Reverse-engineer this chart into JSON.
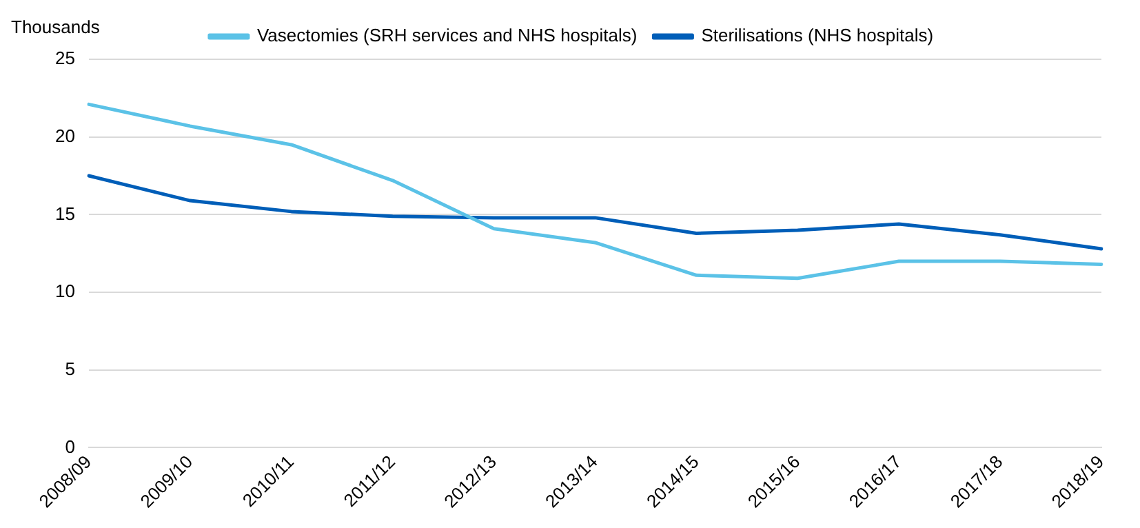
{
  "chart_data": {
    "type": "line",
    "ylabel": "Thousands",
    "categories": [
      "2008/09",
      "2009/10",
      "2010/11",
      "2011/12",
      "2012/13",
      "2013/14",
      "2014/15",
      "2015/16",
      "2016/17",
      "2017/18",
      "2018/19"
    ],
    "series": [
      {
        "name": "Vasectomies (SRH services and NHS hospitals)",
        "color": "#5bc2e7",
        "values": [
          22.1,
          20.7,
          19.5,
          17.2,
          14.1,
          13.2,
          11.1,
          10.9,
          12.0,
          12.0,
          11.8
        ]
      },
      {
        "name": "Sterilisations (NHS hospitals)",
        "color": "#005eb8",
        "values": [
          17.5,
          15.9,
          15.2,
          14.9,
          14.8,
          14.8,
          13.8,
          14.0,
          14.4,
          13.7,
          12.8
        ]
      }
    ],
    "ylim": [
      0,
      25
    ],
    "yticks": [
      0,
      5,
      10,
      15,
      20,
      25
    ],
    "grid": "y",
    "legend": "top",
    "marker": "none",
    "line_style": "solid"
  }
}
